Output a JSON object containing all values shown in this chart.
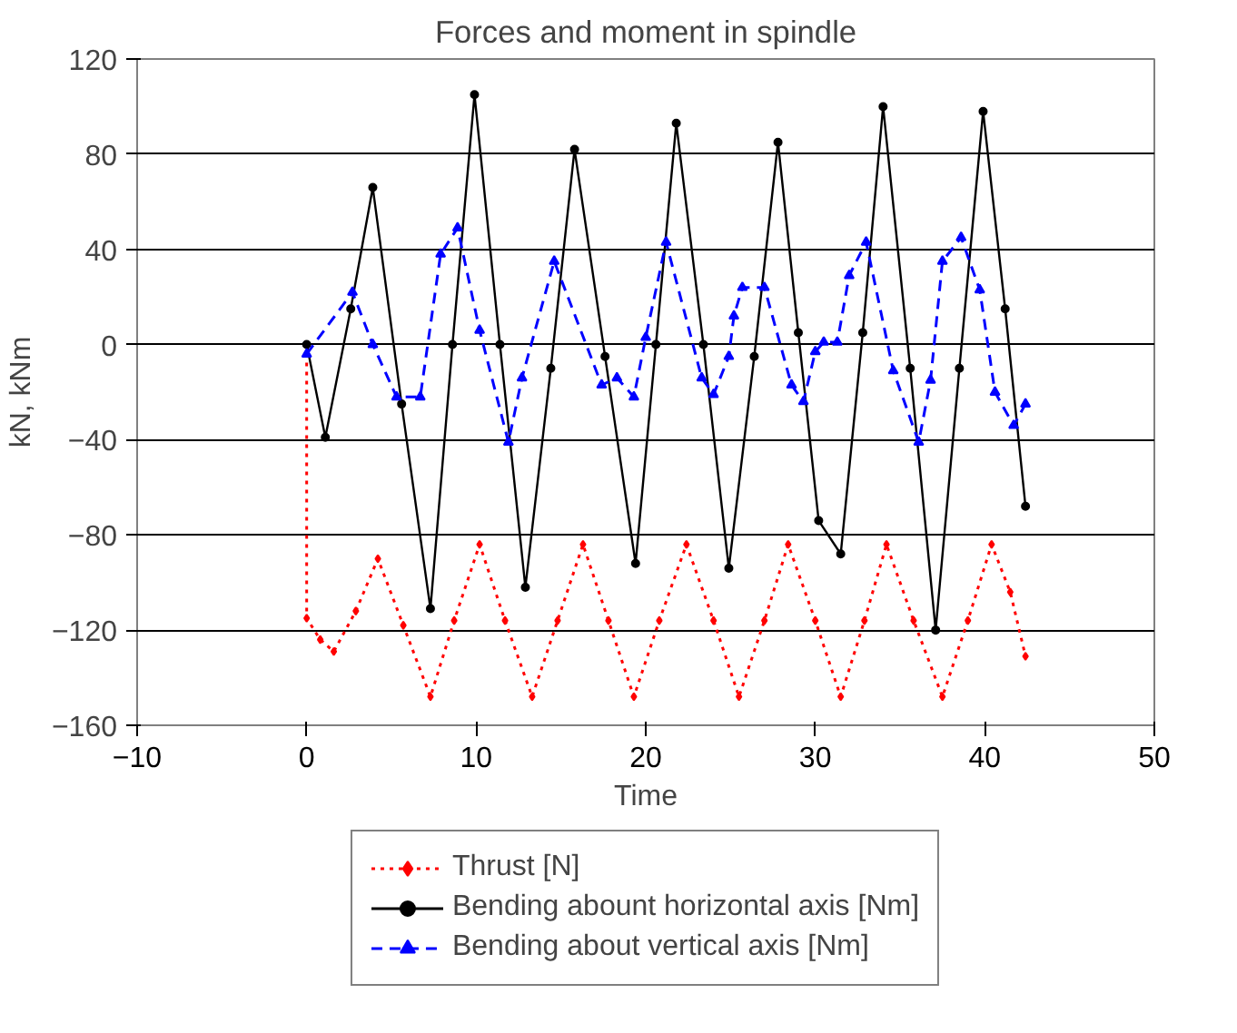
{
  "chart_data": {
    "type": "line",
    "title": "Forces and moment in spindle",
    "xlabel": "Time",
    "ylabel": "kN, kNm",
    "xlim": [
      -10,
      50
    ],
    "xticks": [
      -10,
      0,
      10,
      20,
      30,
      40,
      50
    ],
    "ylim": [
      -160,
      120
    ],
    "yticks": [
      -160,
      -120,
      -80,
      -40,
      0,
      40,
      80,
      120
    ],
    "grid": "y",
    "legend": "bottom",
    "series": [
      {
        "name": "Thrust [N]",
        "color": "#ff0000",
        "marker": "diamond",
        "line_style": "dotted",
        "x": [
          0,
          0,
          0.8,
          1.6,
          2.9,
          4.2,
          5.7,
          7.3,
          8.7,
          10.2,
          11.7,
          13.3,
          14.8,
          16.3,
          17.8,
          19.3,
          20.8,
          22.4,
          24.0,
          25.5,
          27.0,
          28.4,
          30.0,
          31.5,
          32.9,
          34.2,
          35.8,
          37.5,
          39.0,
          40.4,
          41.5,
          42.4
        ],
        "values": [
          0,
          -115,
          -124,
          -129,
          -112,
          -90,
          -118,
          -148,
          -116,
          -84,
          -116,
          -148,
          -116,
          -84,
          -116,
          -148,
          -116,
          -84,
          -116,
          -148,
          -116,
          -84,
          -116,
          -148,
          -116,
          -84,
          -116,
          -148,
          -116,
          -84,
          -104,
          -131
        ]
      },
      {
        "name": "Bending abount horizontal axis [Nm]",
        "color": "#000000",
        "marker": "circle",
        "line_style": "solid",
        "x": [
          0,
          1.1,
          2.6,
          3.9,
          5.6,
          7.3,
          8.6,
          9.9,
          11.4,
          12.9,
          14.4,
          15.8,
          17.6,
          19.4,
          20.6,
          21.8,
          23.4,
          24.9,
          26.4,
          27.8,
          29.0,
          30.2,
          31.5,
          32.8,
          34.0,
          35.6,
          37.1,
          38.5,
          39.9,
          41.2,
          42.4
        ],
        "values": [
          0,
          -39,
          15,
          66,
          -25,
          -111,
          0,
          105,
          0,
          -102,
          -10,
          82,
          -5,
          -92,
          0,
          93,
          0,
          -94,
          -5,
          85,
          5,
          -74,
          -88,
          5,
          100,
          -10,
          -120,
          -10,
          98,
          15,
          -68
        ]
      },
      {
        "name": "Bending about vertical axis [Nm]",
        "color": "#0000ff",
        "marker": "triangle",
        "line_style": "dashed",
        "x": [
          0,
          2.7,
          3.9,
          5.3,
          6.7,
          7.9,
          8.9,
          10.2,
          11.9,
          12.7,
          14.6,
          17.4,
          18.3,
          19.3,
          20.0,
          21.2,
          23.3,
          24.0,
          24.9,
          25.2,
          25.7,
          27.0,
          28.6,
          29.3,
          30.0,
          30.5,
          31.3,
          32.0,
          33.0,
          34.6,
          36.1,
          36.8,
          37.5,
          38.6,
          39.7,
          40.6,
          41.7,
          42.4
        ],
        "values": [
          -4,
          22,
          0,
          -22,
          -22,
          38,
          49,
          6,
          -41,
          -14,
          35,
          -17,
          -14,
          -22,
          3,
          43,
          -14,
          -21,
          -5,
          12,
          24,
          24,
          -17,
          -24,
          -3,
          1,
          1,
          29,
          43,
          -11,
          -41,
          -15,
          35,
          45,
          23,
          -20,
          -34,
          -25
        ]
      }
    ]
  }
}
